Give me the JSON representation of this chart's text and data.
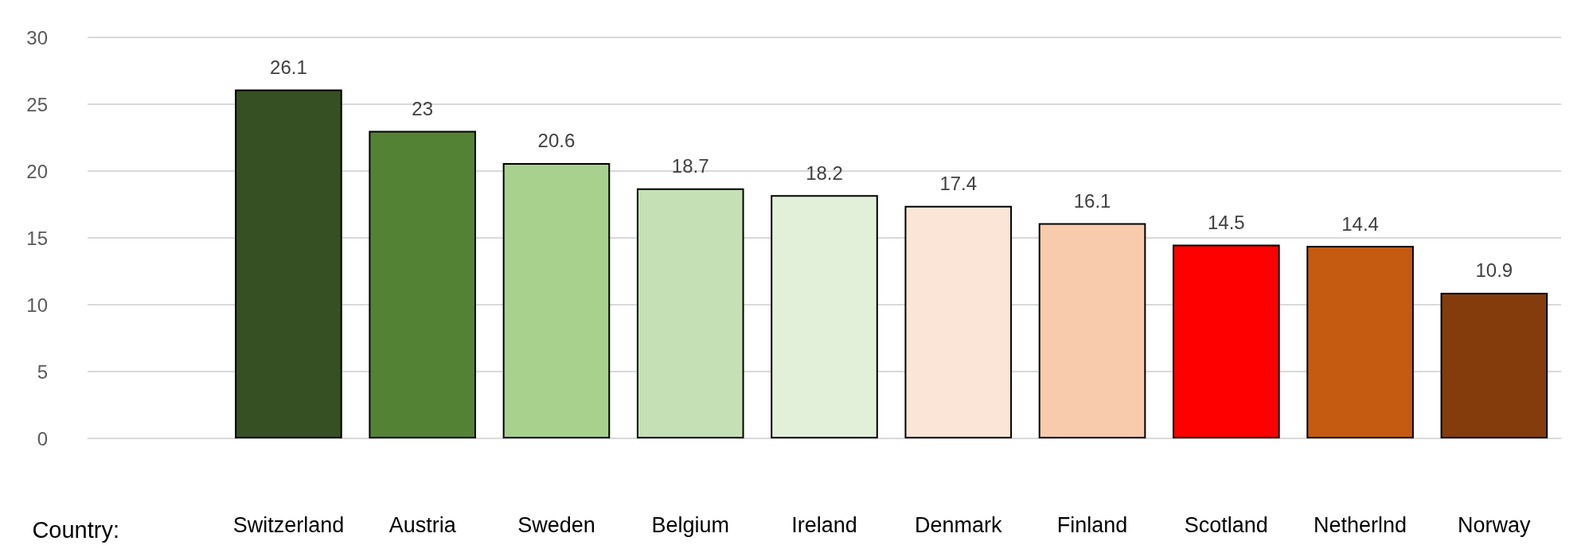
{
  "chart_data": {
    "type": "bar",
    "xlabel": "Country:",
    "categories": [
      null,
      "Switzerland",
      "Austria",
      "Sweden",
      "Belgium",
      "Ireland",
      "Denmark",
      "Finland",
      "Scotland",
      "Netherlnd",
      "Norway"
    ],
    "values": [
      null,
      26.1,
      23,
      20.6,
      18.7,
      18.2,
      17.4,
      16.1,
      14.5,
      14.4,
      10.9
    ],
    "colors": [
      "#ffffff",
      "#375023",
      "#548235",
      "#a9d18e",
      "#c5e0b4",
      "#e2f0d9",
      "#fbe5d6",
      "#f8cbad",
      "#ff0000",
      "#c55a11",
      "#843c0c"
    ],
    "ylim": [
      0,
      30
    ],
    "yticks": [
      0,
      5,
      10,
      15,
      20,
      25,
      30
    ],
    "grid": "y",
    "data_labels": true
  }
}
